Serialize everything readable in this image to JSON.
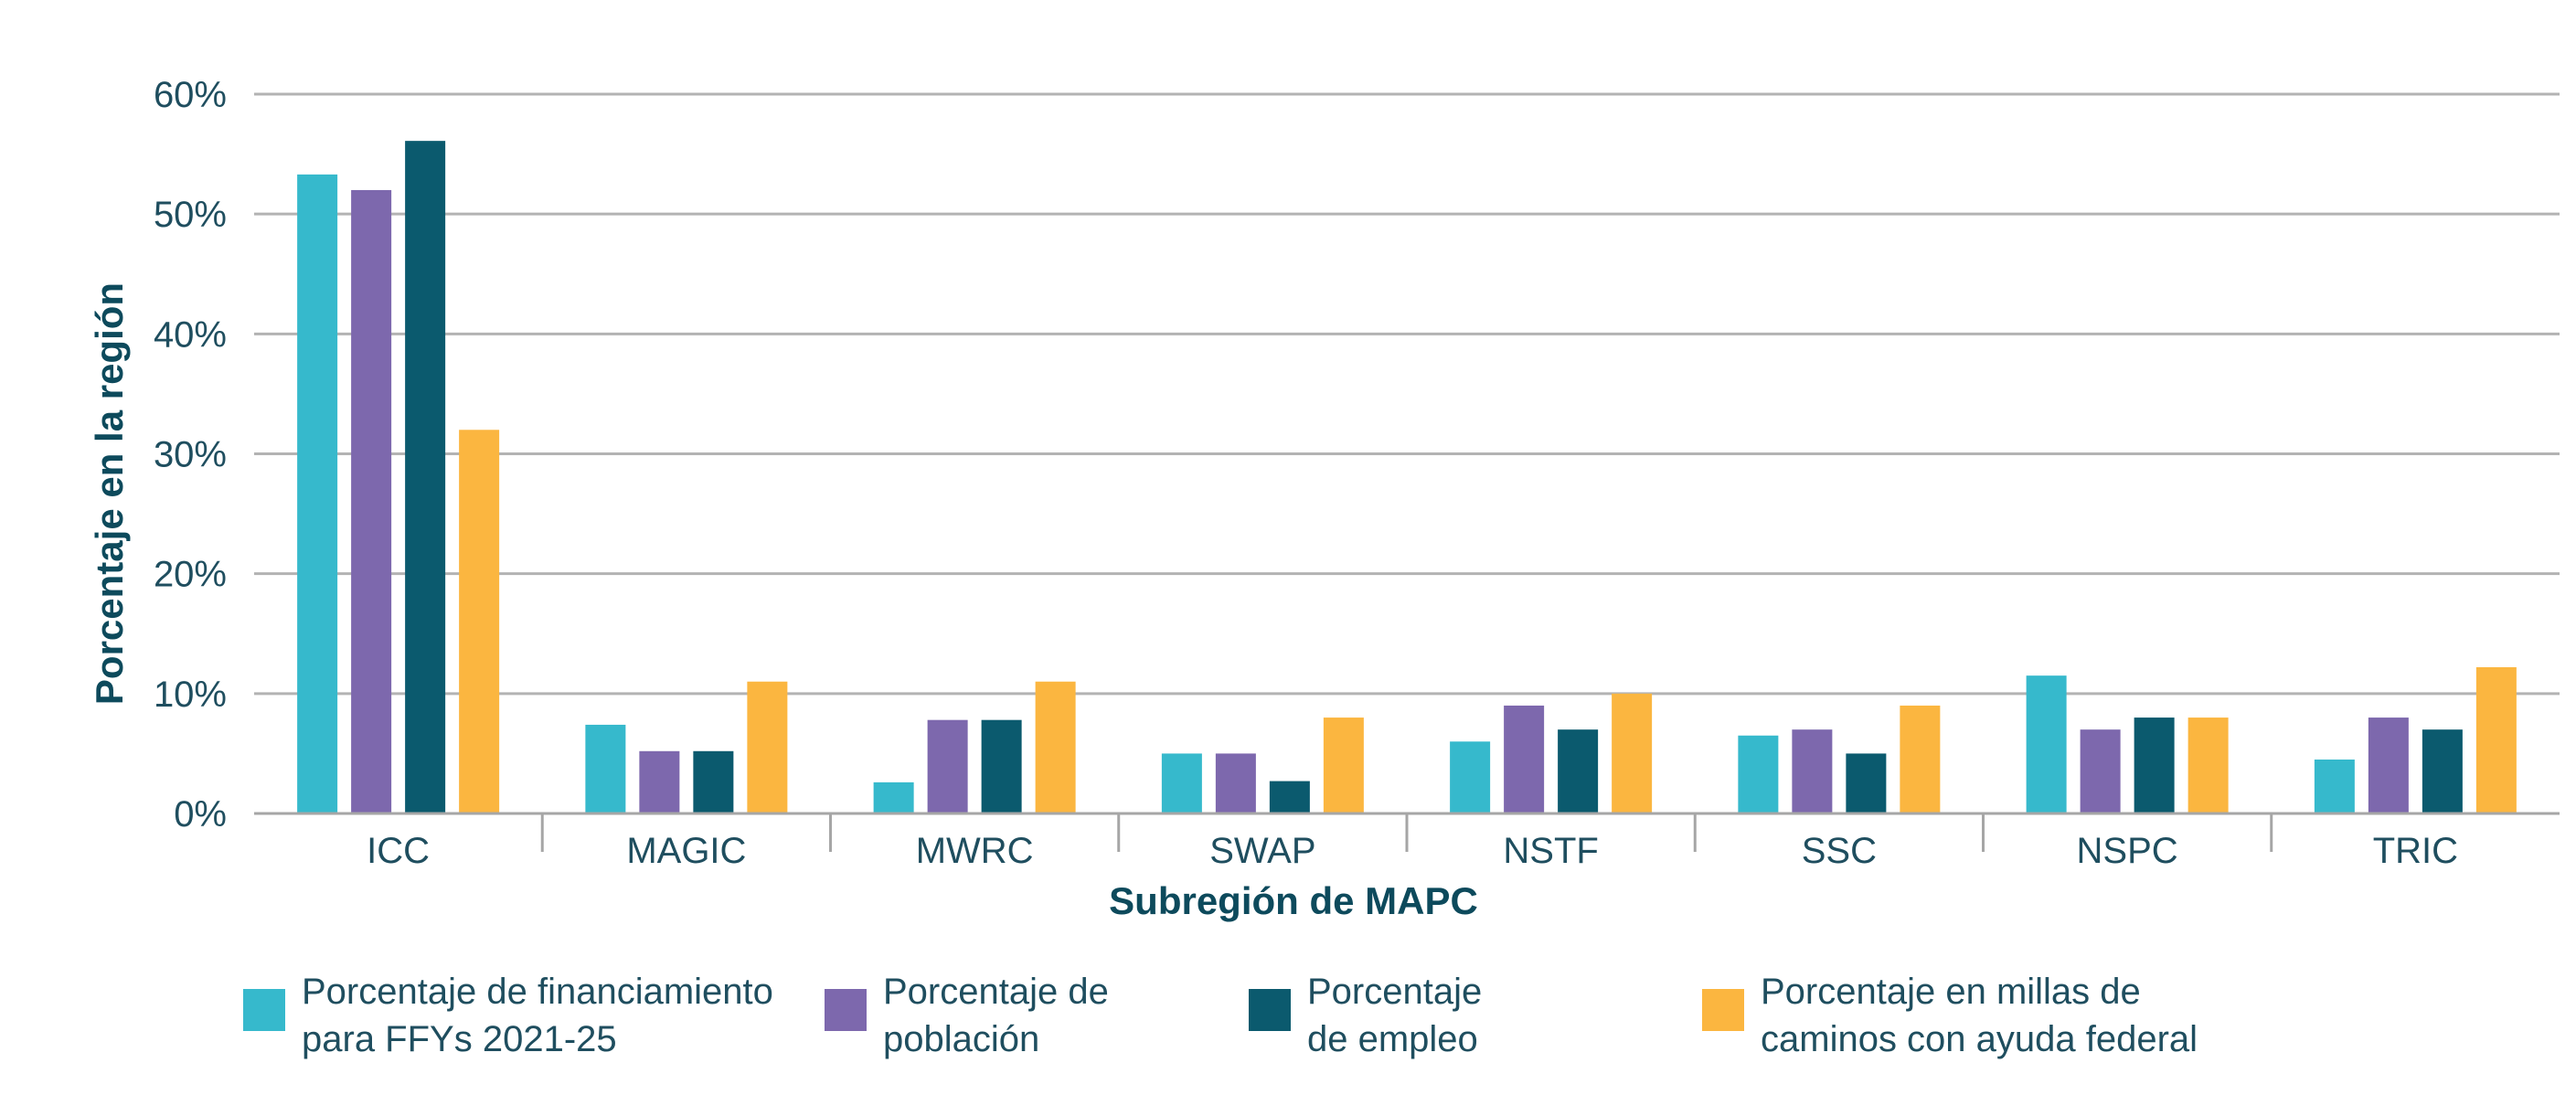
{
  "chart_data": {
    "type": "bar",
    "title": "",
    "xlabel": "Subregión de MAPC",
    "ylabel": "Porcentaje en la región",
    "ylim": [
      0,
      60
    ],
    "yticks": [
      0,
      10,
      20,
      30,
      40,
      50,
      60
    ],
    "ytick_labels": [
      "0%",
      "10%",
      "20%",
      "30%",
      "40%",
      "50%",
      "60%"
    ],
    "grid": true,
    "legend_position": "bottom",
    "categories": [
      "ICC",
      "MAGIC",
      "MWRC",
      "SWAP",
      "NSTF",
      "SSC",
      "NSPC",
      "TRIC"
    ],
    "series": [
      {
        "name": "Porcentaje de financiamiento para FFYs 2021-25",
        "legend_lines": [
          "Porcentaje de financiamiento",
          "para FFYs 2021-25"
        ],
        "color": "#36b9cc",
        "values": [
          53.3,
          7.4,
          2.6,
          5.0,
          6.0,
          6.5,
          11.5,
          4.5
        ]
      },
      {
        "name": "Porcentaje de población",
        "legend_lines": [
          "Porcentaje de",
          "población"
        ],
        "color": "#7d68ad",
        "values": [
          52.0,
          5.2,
          7.8,
          5.0,
          9.0,
          7.0,
          7.0,
          8.0
        ]
      },
      {
        "name": "Porcentaje de empleo",
        "legend_lines": [
          "Porcentaje",
          "de empleo"
        ],
        "color": "#0b5a6e",
        "values": [
          56.1,
          5.2,
          7.8,
          2.7,
          7.0,
          5.0,
          8.0,
          7.0
        ]
      },
      {
        "name": "Porcentaje en millas de caminos con ayuda federal",
        "legend_lines": [
          "Porcentaje en millas de",
          "caminos con ayuda federal"
        ],
        "color": "#fbb640",
        "values": [
          32.0,
          11.0,
          11.0,
          8.0,
          10.0,
          9.0,
          8.0,
          12.2
        ]
      }
    ]
  }
}
